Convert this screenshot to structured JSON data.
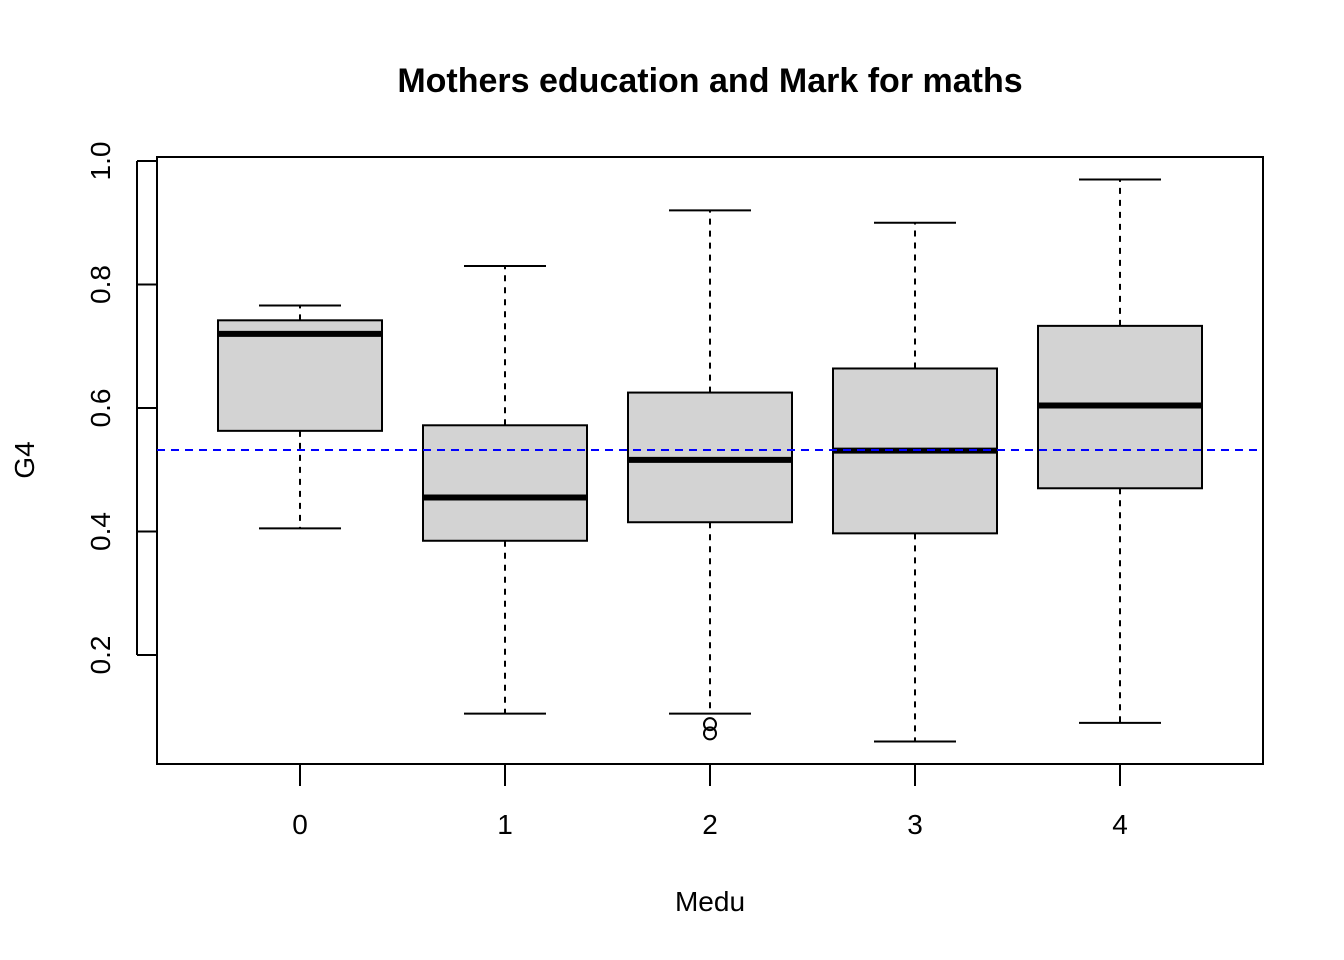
{
  "chart_data": {
    "type": "boxplot",
    "title": "Mothers education and Mark for maths",
    "xlabel": "Medu",
    "ylabel": "G4",
    "categories": [
      "0",
      "1",
      "2",
      "3",
      "4"
    ],
    "yticks": [
      0.2,
      0.4,
      0.6,
      0.8,
      1.0
    ],
    "ytick_labels": [
      "0.2",
      "0.4",
      "0.6",
      "0.8",
      "1.0"
    ],
    "ylim": [
      0.03,
      1.01
    ],
    "boxes": [
      {
        "category": "0",
        "whisker_low": 0.405,
        "q1": 0.563,
        "median": 0.72,
        "q3": 0.742,
        "whisker_high": 0.766,
        "outliers": []
      },
      {
        "category": "1",
        "whisker_low": 0.105,
        "q1": 0.385,
        "median": 0.455,
        "q3": 0.572,
        "whisker_high": 0.83,
        "outliers": []
      },
      {
        "category": "2",
        "whisker_low": 0.105,
        "q1": 0.415,
        "median": 0.516,
        "q3": 0.625,
        "whisker_high": 0.92,
        "outliers": [
          0.088,
          0.073
        ]
      },
      {
        "category": "3",
        "whisker_low": 0.06,
        "q1": 0.397,
        "median": 0.531,
        "q3": 0.664,
        "whisker_high": 0.9,
        "outliers": []
      },
      {
        "category": "4",
        "whisker_low": 0.09,
        "q1": 0.47,
        "median": 0.604,
        "q3": 0.733,
        "whisker_high": 0.97,
        "outliers": []
      }
    ],
    "reference_line": {
      "y": 0.532,
      "color": "#0000ff",
      "style": "dashed"
    },
    "colors": {
      "box_fill": "#d3d3d3",
      "box_stroke": "#000000"
    }
  }
}
